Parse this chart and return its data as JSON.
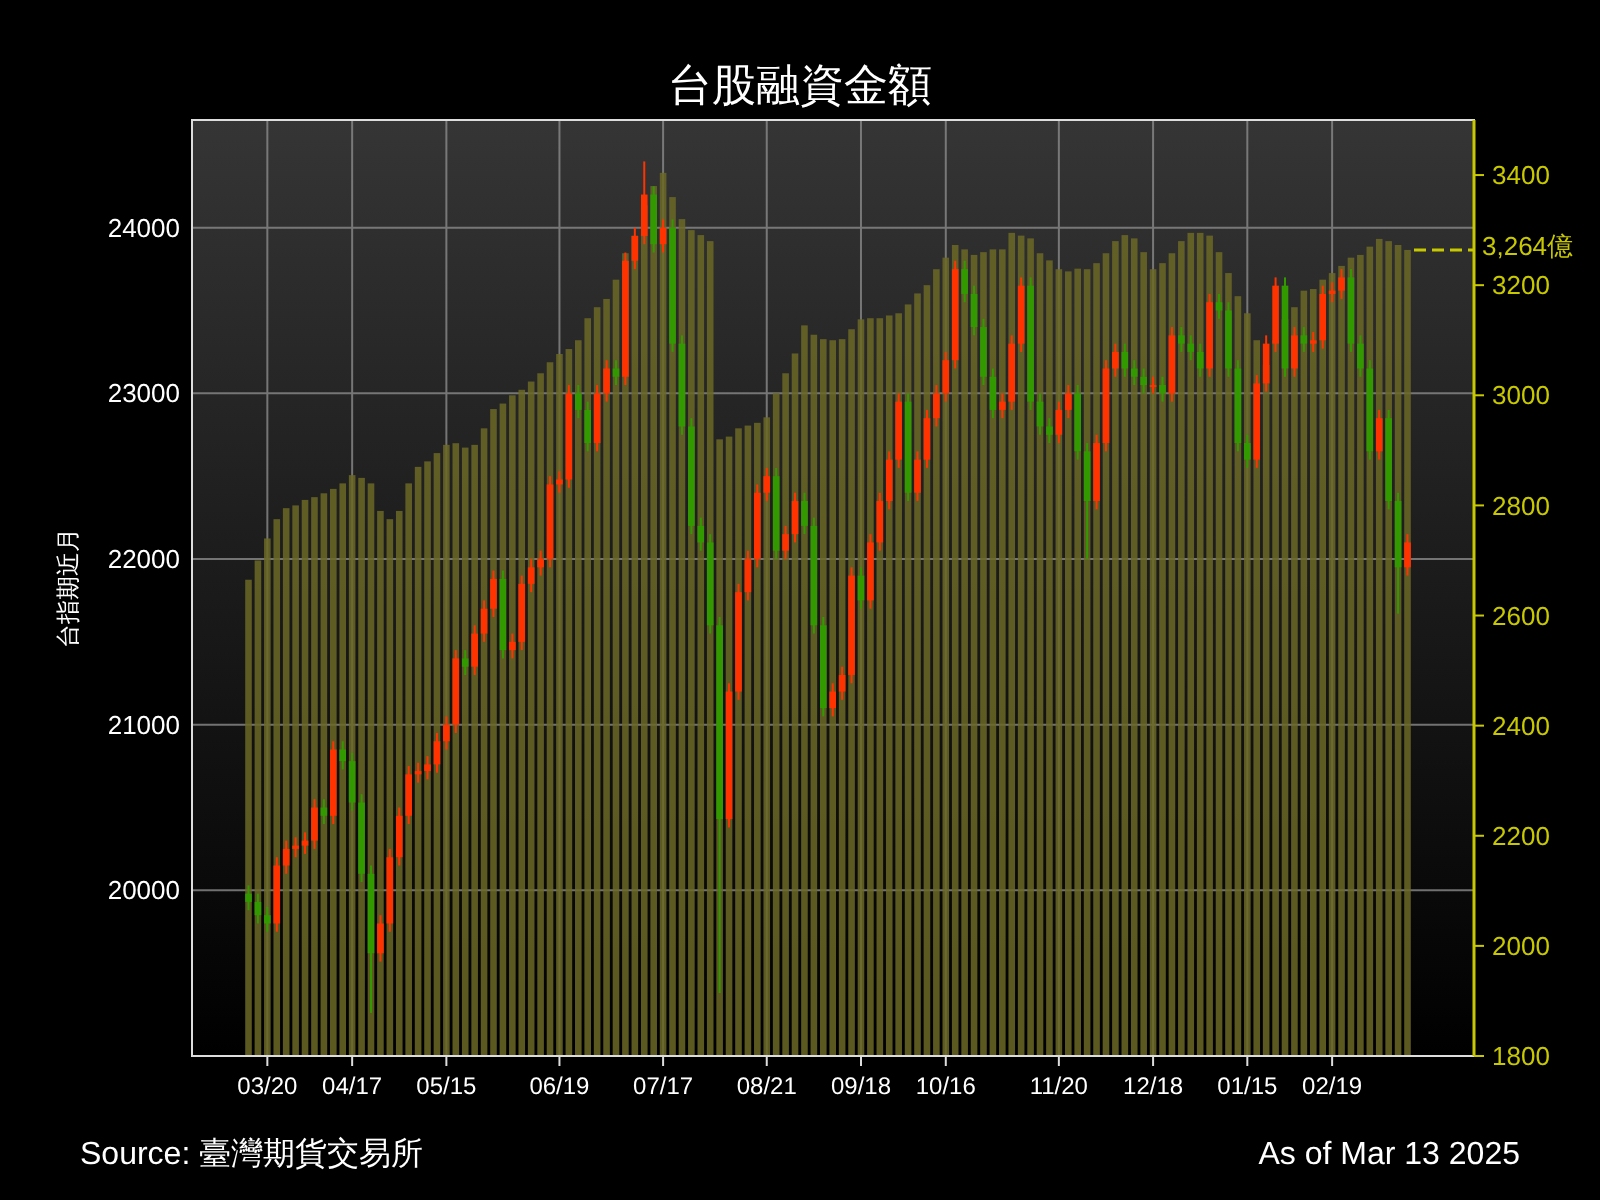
{
  "chart_data": {
    "type": "candlestick",
    "title": "台股融資金額",
    "ylabel": "台指期近月",
    "annotations": [
      "Source: 臺灣期貨交易所",
      "As of Mar 13 2025"
    ],
    "categories": [
      null,
      null,
      "03/20",
      null,
      null,
      null,
      null,
      null,
      null,
      null,
      null,
      "04/17",
      null,
      null,
      null,
      null,
      null,
      null,
      null,
      null,
      null,
      "05/15",
      null,
      null,
      null,
      null,
      null,
      null,
      null,
      null,
      null,
      null,
      null,
      "06/19",
      null,
      null,
      null,
      null,
      null,
      null,
      null,
      null,
      null,
      null,
      "07/17",
      null,
      null,
      null,
      null,
      null,
      null,
      null,
      null,
      null,
      null,
      "08/21",
      null,
      null,
      null,
      null,
      null,
      null,
      null,
      null,
      null,
      "09/18",
      null,
      null,
      null,
      null,
      null,
      null,
      null,
      null,
      "10/16",
      null,
      null,
      null,
      null,
      null,
      null,
      null,
      null,
      null,
      null,
      null,
      "11/20",
      null,
      null,
      null,
      null,
      null,
      null,
      null,
      null,
      null,
      "12/18",
      null,
      null,
      null,
      null,
      null,
      null,
      null,
      null,
      null,
      "01/15",
      null,
      null,
      null,
      null,
      null,
      null,
      null,
      null,
      "02/19",
      null,
      null,
      null,
      null,
      null,
      null,
      null,
      null
    ],
    "ylim": [
      19000,
      24650
    ],
    "yticks": [
      20000,
      21000,
      22000,
      23000,
      24000
    ],
    "y2lim": [
      1800,
      3500
    ],
    "y2ticks": [
      1800,
      2000,
      2200,
      2400,
      2600,
      2800,
      3000,
      3200,
      3400
    ],
    "grid": true,
    "ref_lines": [
      {
        "axis": "y2",
        "value": 3264,
        "label": "3,264億",
        "color": "#c8c800",
        "line_style": "dashed"
      }
    ],
    "series": [
      {
        "type": "bar",
        "axis": "y2",
        "color": "#6b6726",
        "values": [
          2665,
          2700,
          2740,
          2775,
          2795,
          2800,
          2810,
          2815,
          2822,
          2830,
          2840,
          2855,
          2850,
          2840,
          2790,
          2775,
          2790,
          2840,
          2870,
          2880,
          2895,
          2910,
          2913,
          2905,
          2910,
          2940,
          2975,
          2985,
          3000,
          3010,
          3025,
          3040,
          3060,
          3075,
          3084,
          3100,
          3140,
          3160,
          3175,
          3210,
          3258,
          3290,
          3345,
          3380,
          3404,
          3360,
          3320,
          3300,
          3291,
          3280,
          2920,
          2925,
          2940,
          2945,
          2950,
          2960,
          3004,
          3040,
          3076,
          3127,
          3110,
          3102,
          3100,
          3102,
          3120,
          3138,
          3140,
          3140,
          3145,
          3149,
          3165,
          3185,
          3200,
          3229,
          3250,
          3273,
          3265,
          3255,
          3260,
          3265,
          3265,
          3295,
          3290,
          3285,
          3258,
          3245,
          3229,
          3225,
          3230,
          3229,
          3240,
          3258,
          3280,
          3291,
          3285,
          3260,
          3229,
          3240,
          3258,
          3280,
          3295,
          3295,
          3290,
          3260,
          3222,
          3180,
          3149,
          3100,
          3055,
          3100,
          3138,
          3160,
          3190,
          3193,
          3210,
          3222,
          3235,
          3250,
          3255,
          3270,
          3284,
          3280,
          3273,
          3264
        ]
      },
      {
        "colors": [
          "#339900",
          "#339900",
          "#339900",
          "#ff3300",
          "#ff3300",
          "#ff3300",
          "#ff3300",
          "#ff3300",
          "#339900",
          "#ff3300",
          "#339900",
          "#339900",
          "#339900",
          "#339900",
          "#ff3300",
          "#ff3300",
          "#ff3300",
          "#ff3300",
          "#ff3300",
          "#ff3300",
          "#ff3300",
          "#ff3300",
          "#ff3300",
          "#339900",
          "#ff3300",
          "#ff3300",
          "#ff3300",
          "#339900",
          "#ff3300",
          "#ff3300",
          "#ff3300",
          "#ff3300",
          "#ff3300",
          "#ff3300",
          "#ff3300",
          "#339900",
          "#339900",
          "#ff3300",
          "#ff3300",
          "#339900",
          "#ff3300",
          "#ff3300",
          "#ff3300",
          "#339900",
          "#ff3300",
          "#339900",
          "#339900",
          "#339900",
          "#339900",
          "#339900",
          "#339900",
          "#ff3300",
          "#ff3300",
          "#ff3300",
          "#ff3300",
          "#ff3300",
          "#339900",
          "#ff3300",
          "#ff3300",
          "#339900",
          "#339900",
          "#339900",
          "#ff3300",
          "#ff3300",
          "#ff3300",
          "#339900",
          "#ff3300",
          "#ff3300",
          "#ff3300",
          "#ff3300",
          "#339900",
          "#ff3300",
          "#ff3300",
          "#ff3300",
          "#ff3300",
          "#ff3300",
          "#339900",
          "#339900",
          "#339900",
          "#339900",
          "#ff3300",
          "#ff3300",
          "#ff3300",
          "#339900",
          "#339900",
          "#339900",
          "#ff3300",
          "#ff3300",
          "#339900",
          "#339900",
          "#ff3300",
          "#ff3300",
          "#ff3300",
          "#339900",
          "#339900",
          "#339900",
          "#ff3300",
          "#339900",
          "#ff3300",
          "#339900",
          "#339900",
          "#339900",
          "#ff3300",
          "#339900",
          "#339900",
          "#339900",
          "#339900",
          "#ff3300",
          "#ff3300",
          "#ff3300",
          "#339900",
          "#ff3300",
          "#339900",
          "#ff3300",
          "#ff3300",
          "#ff3300",
          "#ff3300",
          "#339900",
          "#339900",
          "#339900",
          "#ff3300",
          "#339900",
          "#339900",
          "#ff3300"
        ],
        "ohlc": [
          [
            19980,
            20030,
            19880,
            19930
          ],
          [
            19930,
            19980,
            19800,
            19850
          ],
          [
            19850,
            19900,
            19750,
            19800
          ],
          [
            19800,
            20200,
            19750,
            20150
          ],
          [
            20150,
            20300,
            20100,
            20250
          ],
          [
            20250,
            20320,
            20200,
            20270
          ],
          [
            20270,
            20350,
            20220,
            20300
          ],
          [
            20300,
            20550,
            20250,
            20500
          ],
          [
            20500,
            20550,
            20400,
            20450
          ],
          [
            20450,
            20900,
            20400,
            20850
          ],
          [
            20850,
            20900,
            20730,
            20780
          ],
          [
            20780,
            20830,
            20480,
            20530
          ],
          [
            20530,
            20580,
            20050,
            20100
          ],
          [
            20100,
            20150,
            19260,
            19620
          ],
          [
            19620,
            19850,
            19570,
            19800
          ],
          [
            19800,
            20250,
            19750,
            20200
          ],
          [
            20200,
            20500,
            20150,
            20450
          ],
          [
            20450,
            20750,
            20400,
            20700
          ],
          [
            20700,
            20770,
            20650,
            20720
          ],
          [
            20720,
            20810,
            20670,
            20760
          ],
          [
            20760,
            20950,
            20710,
            20900
          ],
          [
            20900,
            21050,
            20850,
            21000
          ],
          [
            21000,
            21450,
            20950,
            21400
          ],
          [
            21400,
            21450,
            21300,
            21350
          ],
          [
            21350,
            21600,
            21300,
            21550
          ],
          [
            21550,
            21750,
            21500,
            21700
          ],
          [
            21700,
            21930,
            21650,
            21880
          ],
          [
            21880,
            21930,
            21400,
            21450
          ],
          [
            21450,
            21550,
            21400,
            21500
          ],
          [
            21500,
            21900,
            21450,
            21850
          ],
          [
            21850,
            22000,
            21800,
            21950
          ],
          [
            21950,
            22050,
            21900,
            22000
          ],
          [
            22000,
            22500,
            21950,
            22450
          ],
          [
            22450,
            22530,
            22400,
            22480
          ],
          [
            22480,
            23050,
            22430,
            23000
          ],
          [
            23000,
            23050,
            22850,
            22900
          ],
          [
            22900,
            22950,
            22650,
            22700
          ],
          [
            22700,
            23050,
            22650,
            23000
          ],
          [
            23000,
            23200,
            22950,
            23150
          ],
          [
            23150,
            23200,
            23050,
            23100
          ],
          [
            23100,
            23850,
            23050,
            23800
          ],
          [
            23800,
            24000,
            23750,
            23950
          ],
          [
            23950,
            24400,
            23900,
            24200
          ],
          [
            24200,
            24250,
            23850,
            23900
          ],
          [
            23900,
            24050,
            23850,
            24000
          ],
          [
            24000,
            24050,
            23250,
            23300
          ],
          [
            23300,
            23350,
            22750,
            22800
          ],
          [
            22800,
            22850,
            22150,
            22200
          ],
          [
            22200,
            22250,
            22050,
            22100
          ],
          [
            22100,
            22150,
            21550,
            21600
          ],
          [
            21600,
            21650,
            19380,
            20430
          ],
          [
            20430,
            21250,
            20380,
            21200
          ],
          [
            21200,
            21850,
            21150,
            21800
          ],
          [
            21800,
            22050,
            21750,
            22000
          ],
          [
            22000,
            22450,
            21950,
            22400
          ],
          [
            22400,
            22550,
            22350,
            22500
          ],
          [
            22500,
            22550,
            22000,
            22050
          ],
          [
            22050,
            22200,
            22000,
            22150
          ],
          [
            22150,
            22400,
            22100,
            22350
          ],
          [
            22350,
            22400,
            22150,
            22200
          ],
          [
            22200,
            22250,
            21550,
            21600
          ],
          [
            21600,
            21650,
            21050,
            21100
          ],
          [
            21100,
            21250,
            21050,
            21200
          ],
          [
            21200,
            21350,
            21150,
            21300
          ],
          [
            21300,
            21950,
            21250,
            21900
          ],
          [
            21900,
            21950,
            21700,
            21750
          ],
          [
            21750,
            22150,
            21700,
            22100
          ],
          [
            22100,
            22400,
            22050,
            22350
          ],
          [
            22350,
            22650,
            22300,
            22600
          ],
          [
            22600,
            23000,
            22550,
            22950
          ],
          [
            22950,
            23000,
            22350,
            22400
          ],
          [
            22400,
            22650,
            22350,
            22600
          ],
          [
            22600,
            22900,
            22550,
            22850
          ],
          [
            22850,
            23050,
            22800,
            23000
          ],
          [
            23000,
            23250,
            22950,
            23200
          ],
          [
            23200,
            23800,
            23150,
            23750
          ],
          [
            23750,
            23800,
            23550,
            23600
          ],
          [
            23600,
            23650,
            23350,
            23400
          ],
          [
            23400,
            23450,
            23050,
            23100
          ],
          [
            23100,
            23150,
            22850,
            22900
          ],
          [
            22900,
            23000,
            22850,
            22950
          ],
          [
            22950,
            23350,
            22900,
            23300
          ],
          [
            23300,
            23700,
            23250,
            23650
          ],
          [
            23650,
            23700,
            22900,
            22950
          ],
          [
            22950,
            23000,
            22750,
            22800
          ],
          [
            22800,
            22850,
            22700,
            22750
          ],
          [
            22750,
            22950,
            22700,
            22900
          ],
          [
            22900,
            23050,
            22850,
            23000
          ],
          [
            23000,
            23050,
            22600,
            22650
          ],
          [
            22650,
            22700,
            22000,
            22350
          ],
          [
            22350,
            22750,
            22300,
            22700
          ],
          [
            22700,
            23200,
            22650,
            23150
          ],
          [
            23150,
            23300,
            23100,
            23250
          ],
          [
            23250,
            23300,
            23100,
            23150
          ],
          [
            23150,
            23200,
            23050,
            23100
          ],
          [
            23100,
            23150,
            23000,
            23050
          ],
          [
            23050,
            23100,
            23000,
            23050
          ],
          [
            23050,
            23100,
            22950,
            23000
          ],
          [
            23000,
            23400,
            22950,
            23350
          ],
          [
            23350,
            23400,
            23250,
            23300
          ],
          [
            23300,
            23350,
            23200,
            23250
          ],
          [
            23250,
            23300,
            23100,
            23150
          ],
          [
            23150,
            23600,
            23100,
            23550
          ],
          [
            23550,
            23600,
            23450,
            23500
          ],
          [
            23500,
            23550,
            23100,
            23150
          ],
          [
            23150,
            23200,
            22650,
            22700
          ],
          [
            22700,
            22750,
            22550,
            22600
          ],
          [
            22600,
            23110,
            22550,
            23060
          ],
          [
            23060,
            23350,
            23010,
            23300
          ],
          [
            23300,
            23700,
            23250,
            23650
          ],
          [
            23650,
            23700,
            23100,
            23150
          ],
          [
            23150,
            23400,
            23100,
            23350
          ],
          [
            23350,
            23400,
            23250,
            23300
          ],
          [
            23300,
            23370,
            23250,
            23320
          ],
          [
            23320,
            23650,
            23270,
            23600
          ],
          [
            23600,
            23670,
            23550,
            23620
          ],
          [
            23620,
            23750,
            23570,
            23700
          ],
          [
            23700,
            23750,
            23250,
            23300
          ],
          [
            23300,
            23350,
            23100,
            23150
          ],
          [
            23150,
            23200,
            22600,
            22650
          ],
          [
            22650,
            22900,
            22600,
            22850
          ],
          [
            22850,
            22900,
            22300,
            22350
          ],
          [
            22350,
            22400,
            21670,
            21950
          ],
          [
            21950,
            22150,
            21900,
            22100
          ]
        ]
      }
    ]
  }
}
